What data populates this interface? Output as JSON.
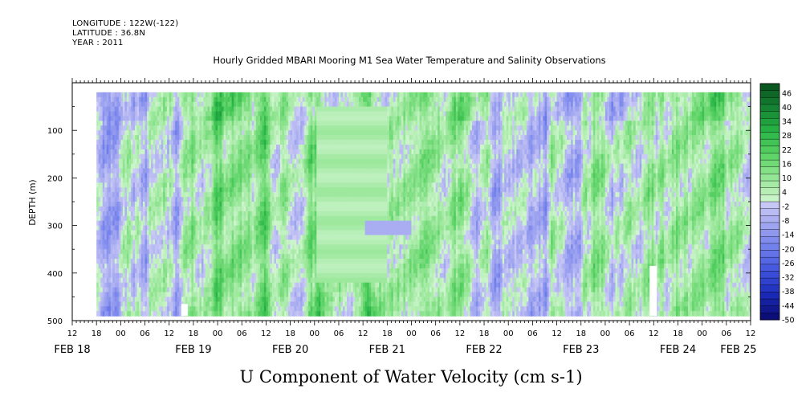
{
  "header": {
    "longitude": "LONGITUDE : 122W(-122)",
    "latitude": "LATITUDE : 36.8N",
    "year": "YEAR : 2011",
    "title": "Hourly Gridded MBARI Mooring M1 Sea Water Temperature and Salinity Observations"
  },
  "chart_data": {
    "type": "heatmap",
    "title": "Hourly Gridded MBARI Mooring M1 Sea Water Temperature and Salinity Observations",
    "xlabel": "U Component of Water Velocity (cm s-1)",
    "ylabel": "DEPTH (m)",
    "y_range": [
      500,
      0
    ],
    "y_ticks": [
      100,
      200,
      300,
      400,
      500
    ],
    "x_range_hours": [
      "2011-02-18 12:00",
      "2011-02-25 12:00"
    ],
    "x_hour_ticks": [
      "12",
      "18",
      "00",
      "06",
      "12",
      "18",
      "00",
      "06",
      "12",
      "18",
      "00",
      "06",
      "12",
      "18",
      "00",
      "06",
      "12",
      "18",
      "00",
      "06",
      "12",
      "18",
      "00",
      "06",
      "12",
      "18",
      "00",
      "06",
      "12"
    ],
    "x_day_labels": [
      "FEB 18",
      "FEB 19",
      "FEB 20",
      "FEB 21",
      "FEB 22",
      "FEB 23",
      "FEB 24",
      "FEB 25"
    ],
    "data_depth_range": [
      20,
      490
    ],
    "data_start": "2011-02-18 18:00",
    "colorbar": {
      "labels": [
        "46",
        "40",
        "34",
        "28",
        "22",
        "16",
        "10",
        "4",
        "-2",
        "-8",
        "-14",
        "-20",
        "-26",
        "-32",
        "-38",
        "-44",
        "-50"
      ],
      "min": -50,
      "max": 50,
      "step": 3
    },
    "field_description": "U velocity field, values mostly between -20 and 20 cm/s; blue = negative, green = positive",
    "grid": false
  }
}
